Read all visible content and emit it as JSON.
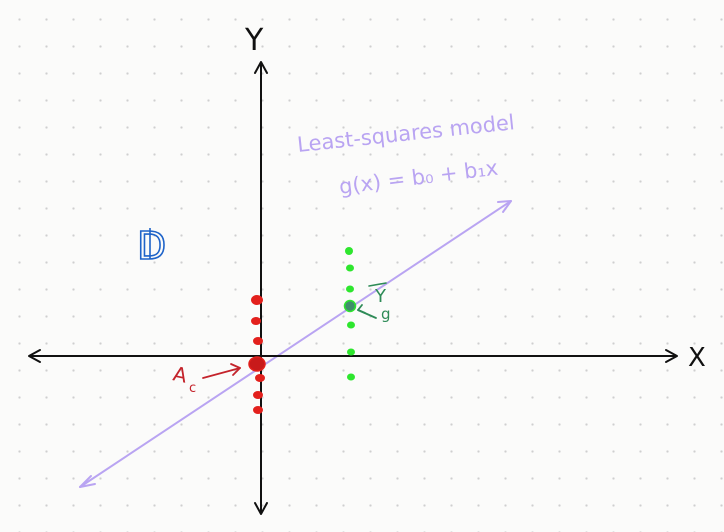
{
  "axes": {
    "x_label": "X",
    "y_label": "Y"
  },
  "dataset": {
    "label": "D"
  },
  "model": {
    "title": "Least-squares model",
    "equation": "g(x) = b₀ + b₁x"
  },
  "annotations": {
    "class_c": {
      "label": "A",
      "subscript": "c"
    },
    "class_g": {
      "label": "Y",
      "subscript": "g"
    }
  },
  "colors": {
    "axis": "#111111",
    "model": "#b9a4f2",
    "class_c": "#e3201c",
    "class_c_label": "#c4232b",
    "class_g": "#2ee62e",
    "class_g_label": "#2e8b57",
    "dataset_label": "#1e63c9",
    "grid_dot": "#cfcfcf"
  }
}
